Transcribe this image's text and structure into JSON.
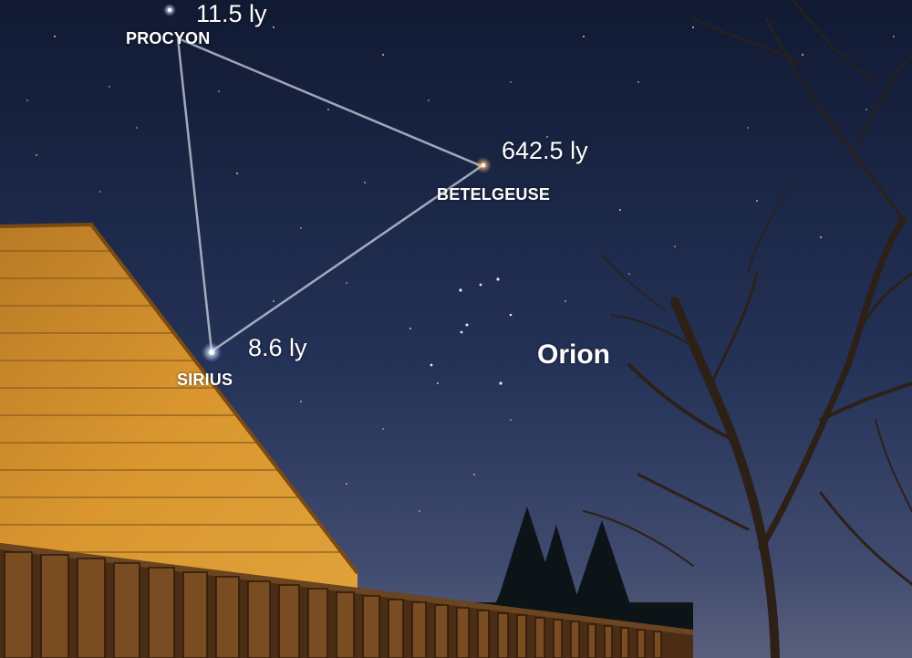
{
  "stars": {
    "procyon": {
      "name": "PROCYON",
      "distance": "11.5 ly"
    },
    "betelgeuse": {
      "name": "BETELGEUSE",
      "distance": "642.5 ly"
    },
    "sirius": {
      "name": "SIRIUS",
      "distance": "8.6 ly"
    }
  },
  "constellation": {
    "name": "Orion"
  },
  "colors": {
    "sky_top": "#121a33",
    "sky_mid": "#26345a",
    "sky_horizon": "#4d5778",
    "house_siding": "#c98a2c",
    "fence": "#5b3818",
    "label": "#ffffff"
  }
}
